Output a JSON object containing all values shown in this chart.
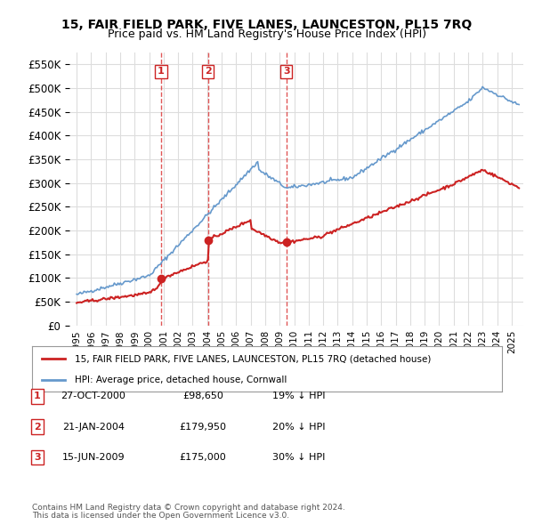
{
  "title": "15, FAIR FIELD PARK, FIVE LANES, LAUNCESTON, PL15 7RQ",
  "subtitle": "Price paid vs. HM Land Registry's House Price Index (HPI)",
  "legend_label_red": "15, FAIR FIELD PARK, FIVE LANES, LAUNCESTON, PL15 7RQ (detached house)",
  "legend_label_blue": "HPI: Average price, detached house, Cornwall",
  "footer1": "Contains HM Land Registry data © Crown copyright and database right 2024.",
  "footer2": "This data is licensed under the Open Government Licence v3.0.",
  "transactions": [
    {
      "num": 1,
      "date": "27-OCT-2000",
      "price": "£98,650",
      "pct": "19% ↓ HPI",
      "year": 2000.82
    },
    {
      "num": 2,
      "date": "21-JAN-2004",
      "price": "£179,950",
      "pct": "20% ↓ HPI",
      "year": 2004.05
    },
    {
      "num": 3,
      "date": "15-JUN-2009",
      "price": "£175,000",
      "pct": "30% ↓ HPI",
      "year": 2009.46
    }
  ],
  "transaction_values": [
    98650,
    179950,
    175000
  ],
  "ylim": [
    0,
    575000
  ],
  "yticks": [
    0,
    50000,
    100000,
    150000,
    200000,
    250000,
    300000,
    350000,
    400000,
    450000,
    500000,
    550000
  ],
  "hpi_color": "#6699cc",
  "price_color": "#cc2222",
  "vline_color": "#dd4444",
  "grid_color": "#dddddd",
  "background_color": "#ffffff"
}
